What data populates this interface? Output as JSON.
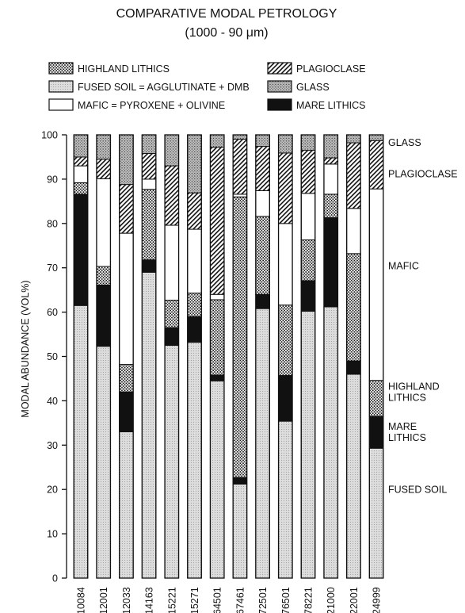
{
  "chart_data": {
    "type": "bar",
    "stacked": true,
    "title": "COMPARATIVE MODAL PETROLOGY",
    "subtitle": "(1000 - 90 μm)",
    "xlabel": "",
    "ylabel": "MODAL ABUNDANCE (VOL%)",
    "ylim": [
      0,
      100
    ],
    "yticks": [
      0,
      10,
      20,
      30,
      40,
      50,
      60,
      70,
      80,
      90,
      100
    ],
    "grid": false,
    "legend_position": "top",
    "categories": [
      "10084",
      "12001",
      "12033",
      "14163",
      "15221",
      "15271",
      "64501",
      "67461",
      "72501",
      "76501",
      "78221",
      "21000",
      "22001",
      "24999"
    ],
    "legend": [
      {
        "key": "highland",
        "label": "HIGHLAND  LITHICS",
        "pattern": "dots-dense"
      },
      {
        "key": "fused",
        "label": "FUSED SOIL = AGGLUTINATE + DMB",
        "pattern": "dots-light"
      },
      {
        "key": "mafic",
        "label": "MAFIC = PYROXENE + OLIVINE",
        "pattern": "white"
      },
      {
        "key": "plag",
        "label": "PLAGIOCLASE",
        "pattern": "hatch"
      },
      {
        "key": "glass",
        "label": "GLASS",
        "pattern": "dots-mid"
      },
      {
        "key": "mare",
        "label": "MARE LITHICS",
        "pattern": "black"
      }
    ],
    "series": [
      {
        "name": "FUSED SOIL",
        "key": "fused",
        "values": [
          61.5,
          52.3,
          33.0,
          69.0,
          52.5,
          53.2,
          44.5,
          21.2,
          60.8,
          35.4,
          60.2,
          61.2,
          46.0,
          29.3
        ]
      },
      {
        "name": "MARE LITHICS",
        "key": "mare",
        "values": [
          25.1,
          13.8,
          9.0,
          2.8,
          4.0,
          5.8,
          1.3,
          1.5,
          3.2,
          10.3,
          6.9,
          20.1,
          3.0,
          7.2
        ]
      },
      {
        "name": "HIGHLAND LITHICS",
        "key": "highland",
        "values": [
          2.6,
          4.2,
          6.2,
          15.9,
          6.2,
          5.3,
          17.0,
          63.3,
          17.6,
          15.9,
          9.2,
          5.3,
          24.2,
          8.1
        ]
      },
      {
        "name": "MAFIC",
        "key": "mafic",
        "values": [
          3.8,
          19.8,
          29.6,
          2.3,
          16.9,
          14.4,
          1.2,
          0.6,
          5.8,
          18.4,
          10.5,
          6.8,
          10.2,
          43.2
        ]
      },
      {
        "name": "PLAGIOCLASE",
        "key": "plag",
        "values": [
          2.0,
          4.4,
          11.0,
          5.8,
          13.4,
          8.2,
          33.2,
          12.4,
          10.0,
          15.9,
          9.7,
          1.4,
          14.8,
          10.9
        ]
      },
      {
        "name": "GLASS",
        "key": "glass",
        "values": [
          5.0,
          5.5,
          11.2,
          4.2,
          7.0,
          13.1,
          2.8,
          1.0,
          2.6,
          4.1,
          3.5,
          5.2,
          1.8,
          1.3
        ]
      }
    ],
    "side_labels": [
      "GLASS",
      "PLAGIOCLASE",
      "MAFIC",
      "HIGHLAND LITHICS",
      "MARE LITHICS",
      "FUSED SOIL"
    ],
    "side_label_values": [
      98.3,
      91.2,
      70.5,
      42.0,
      33.0,
      20.0
    ]
  }
}
